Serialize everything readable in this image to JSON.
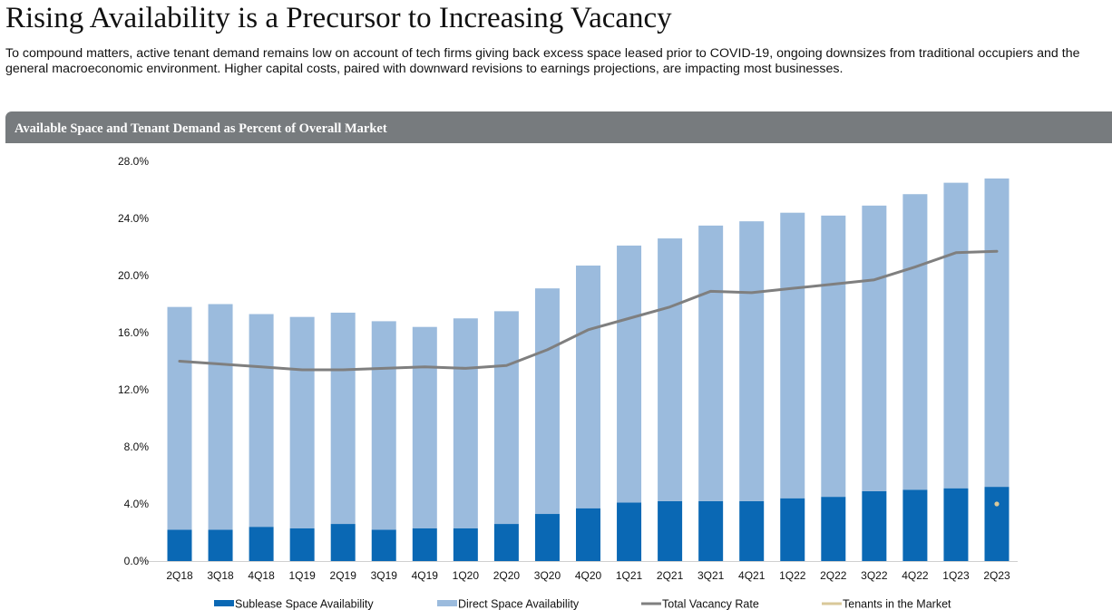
{
  "page": {
    "title": "Rising Availability is a Precursor to Increasing Vacancy",
    "subtitle": "To compound matters, active tenant demand remains low on account of tech firms giving back excess space leased prior to COVID-19, ongoing downsizes from traditional occupiers and the general macroeconomic environment. Higher capital costs, paired with downward revisions to earnings projections, are impacting most businesses."
  },
  "chart_data": {
    "type": "bar",
    "title": "Available Space and Tenant Demand as Percent of Overall Market",
    "stacked": true,
    "categories": [
      "2Q18",
      "3Q18",
      "4Q18",
      "1Q19",
      "2Q19",
      "3Q19",
      "4Q19",
      "1Q20",
      "2Q20",
      "3Q20",
      "4Q20",
      "1Q21",
      "2Q21",
      "3Q21",
      "4Q21",
      "1Q22",
      "2Q22",
      "3Q22",
      "4Q22",
      "1Q23",
      "2Q23"
    ],
    "ylim": [
      0,
      28
    ],
    "yticks": [
      "0.0%",
      "4.0%",
      "8.0%",
      "12.0%",
      "16.0%",
      "20.0%",
      "24.0%",
      "28.0%"
    ],
    "ytick_values": [
      0,
      4,
      8,
      12,
      16,
      20,
      24,
      28
    ],
    "grid": false,
    "legend_position": "bottom",
    "series": [
      {
        "name": "Sublease Space Availability",
        "kind": "bar",
        "color": "#0a68b4",
        "values": [
          2.2,
          2.2,
          2.4,
          2.3,
          2.6,
          2.2,
          2.3,
          2.3,
          2.6,
          3.3,
          3.7,
          4.1,
          4.2,
          4.2,
          4.2,
          4.4,
          4.5,
          4.9,
          5.0,
          5.1,
          5.2
        ]
      },
      {
        "name": "Direct Space Availability",
        "kind": "bar",
        "color": "#9bbbdd",
        "values": [
          15.6,
          15.8,
          14.9,
          14.8,
          14.8,
          14.6,
          14.1,
          14.7,
          14.9,
          15.8,
          17.0,
          18.0,
          18.4,
          19.3,
          19.6,
          20.0,
          19.7,
          20.0,
          20.7,
          21.4,
          21.6
        ]
      },
      {
        "name": "Total Vacancy Rate",
        "kind": "line",
        "color": "#7f7f7f",
        "values": [
          14.0,
          13.8,
          13.6,
          13.4,
          13.4,
          13.5,
          13.6,
          13.5,
          13.7,
          14.8,
          16.2,
          17.0,
          17.8,
          18.9,
          18.8,
          19.1,
          19.4,
          19.7,
          20.6,
          21.6,
          21.7
        ]
      },
      {
        "name": "Tenants in the Market",
        "kind": "marker",
        "color": "#d9c89a",
        "points": [
          {
            "category": "2Q23",
            "value": 4.0
          }
        ]
      }
    ]
  }
}
